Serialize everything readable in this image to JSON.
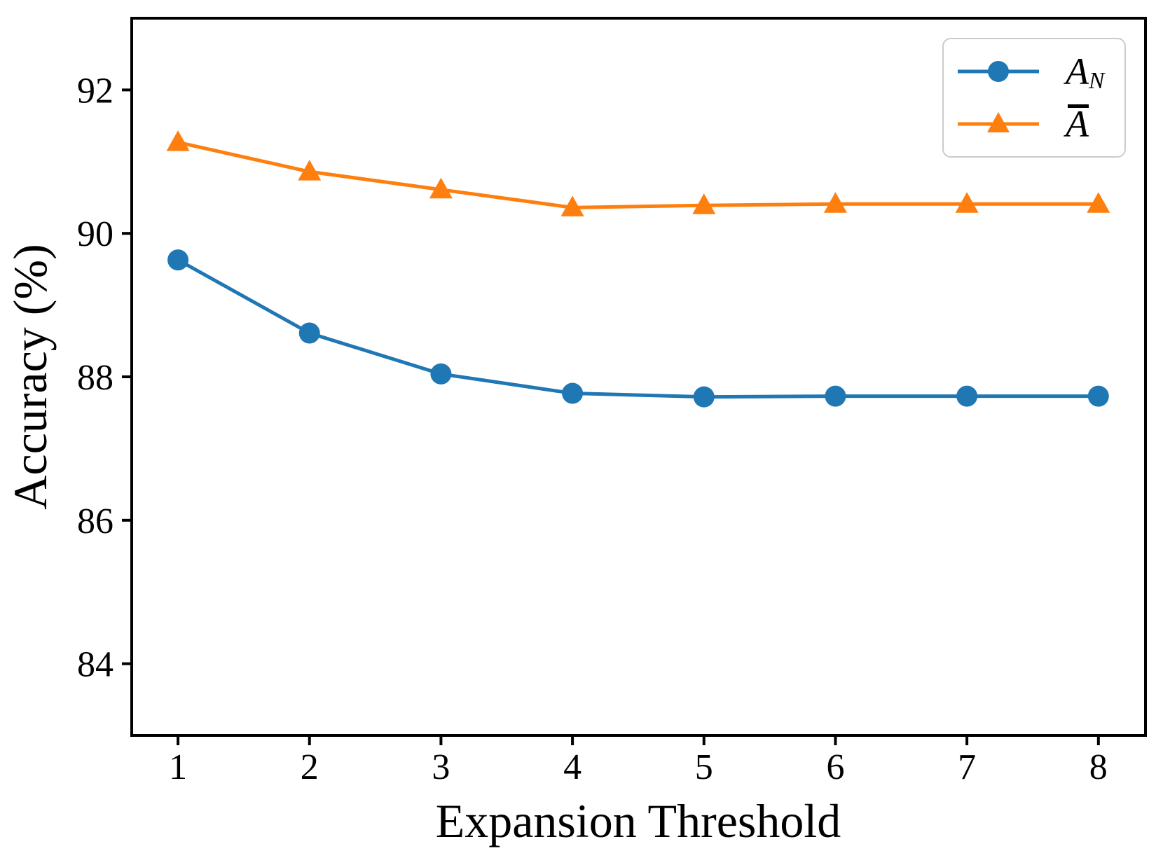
{
  "chart_data": {
    "type": "line",
    "title": "",
    "xlabel": "Expansion Threshold",
    "ylabel": "Accuracy (%)",
    "x": [
      1,
      2,
      3,
      4,
      5,
      6,
      7,
      8
    ],
    "series": [
      {
        "name": "A_N",
        "marker": "circle",
        "color": "#1f77b4",
        "values": [
          89.63,
          88.61,
          88.04,
          87.77,
          87.72,
          87.73,
          87.73,
          87.73
        ]
      },
      {
        "name": "A_bar",
        "marker": "triangle-up",
        "color": "#ff7f0e",
        "values": [
          91.27,
          90.86,
          90.61,
          90.36,
          90.39,
          90.41,
          90.41,
          90.41
        ]
      }
    ],
    "xlim": [
      0.648,
      8.358
    ],
    "ylim": [
      83,
      93
    ],
    "xticks": [
      "1",
      "2",
      "3",
      "4",
      "5",
      "6",
      "7",
      "8"
    ],
    "yticks": [
      "84",
      "86",
      "88",
      "90",
      "92"
    ],
    "grid": false,
    "legend_position": "upper right"
  },
  "legend": {
    "items": [
      {
        "base": "A",
        "subscript": "N",
        "overline": false,
        "color": "#1f77b4",
        "marker": "circle"
      },
      {
        "base": "A",
        "subscript": "",
        "overline": true,
        "color": "#ff7f0e",
        "marker": "triangle-up"
      }
    ]
  },
  "colors": {
    "series_blue": "#1f77b4",
    "series_orange": "#ff7f0e",
    "axis": "#000000",
    "legend_border": "#cbcbcb"
  }
}
